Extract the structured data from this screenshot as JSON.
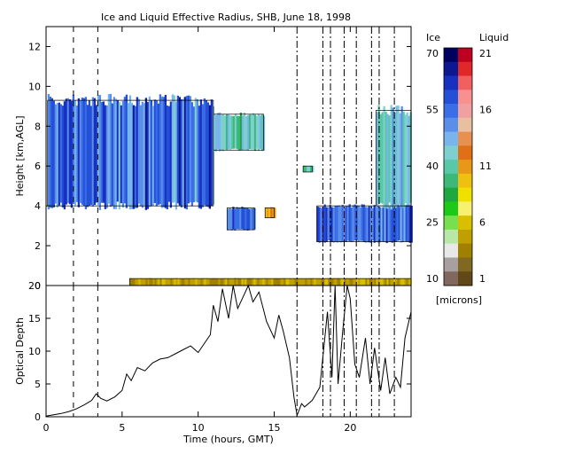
{
  "chart_data": [
    {
      "type": "heatmap",
      "title": "Ice and Liquid Effective Radius, SHB, June 18, 1998",
      "ylabel": "Height [km,AGL]",
      "xlim": [
        0,
        24
      ],
      "ylim": [
        0,
        13
      ],
      "yticks": [
        0,
        2,
        4,
        6,
        8,
        10,
        12
      ],
      "cloud_regions": [
        {
          "label": "upper ice layer",
          "x_start": 0.1,
          "x_end": 11.0,
          "y_bottom": 4.0,
          "y_top": 9.3,
          "phase": "ice",
          "value_range": [
            45,
            65
          ]
        },
        {
          "label": "ice top fringe",
          "x_start": 11.0,
          "x_end": 14.3,
          "y_bottom": 6.8,
          "y_top": 8.6,
          "phase": "ice",
          "value_range": [
            34,
            50
          ]
        },
        {
          "label": "mid ice patch",
          "x_start": 11.9,
          "x_end": 13.7,
          "y_bottom": 2.8,
          "y_top": 3.9,
          "phase": "ice",
          "value_range": [
            50,
            62
          ]
        },
        {
          "label": "liquid patch",
          "x_start": 14.4,
          "x_end": 15.0,
          "y_bottom": 3.4,
          "y_top": 3.9,
          "phase": "liquid",
          "value_range": [
            10,
            12
          ]
        },
        {
          "label": "small ice cell",
          "x_start": 16.9,
          "x_end": 17.5,
          "y_bottom": 5.7,
          "y_top": 6.0,
          "phase": "ice",
          "value_range": [
            35,
            45
          ]
        },
        {
          "label": "late ice layer",
          "x_start": 17.8,
          "x_end": 24.0,
          "y_bottom": 2.2,
          "y_top": 4.0,
          "phase": "ice",
          "value_range": [
            48,
            64
          ]
        },
        {
          "label": "late upper ice",
          "x_start": 21.7,
          "x_end": 24.0,
          "y_bottom": 4.0,
          "y_top": 8.8,
          "phase": "ice",
          "value_range": [
            38,
            52
          ]
        },
        {
          "label": "surface liquid layer",
          "x_start": 5.5,
          "x_end": 24.0,
          "y_bottom": 0.0,
          "y_top": 0.35,
          "phase": "liquid",
          "value_range": [
            3,
            6
          ]
        }
      ],
      "vertical_lines": [
        {
          "x": 1.8,
          "style": "dashed"
        },
        {
          "x": 3.4,
          "style": "dashed"
        },
        {
          "x": 16.5,
          "style": "dash-dot"
        },
        {
          "x": 18.2,
          "style": "dash-dot"
        },
        {
          "x": 18.7,
          "style": "dash-dot"
        },
        {
          "x": 19.6,
          "style": "dash-dot"
        },
        {
          "x": 20.4,
          "style": "dash-dot"
        },
        {
          "x": 21.4,
          "style": "dash-dot"
        },
        {
          "x": 21.9,
          "style": "dash-dot"
        },
        {
          "x": 22.9,
          "style": "dash-dot"
        }
      ],
      "colorbar": {
        "ice_label": "Ice",
        "liquid_label": "Liquid",
        "unit": "[microns]",
        "ice_ticks": [
          70,
          55,
          40,
          25,
          10
        ],
        "liquid_ticks": [
          21,
          16,
          11,
          6,
          1
        ],
        "colors": [
          "#000060",
          "#0c1790",
          "#1830c0",
          "#2450d8",
          "#3a6ee6",
          "#5a8ee8",
          "#7ab4ec",
          "#7ed0d0",
          "#58c8a8",
          "#3cb878",
          "#20a840",
          "#1cc818",
          "#78e050",
          "#b8e8a8",
          "#e8e8e8",
          "#a8a0a0",
          "#806860"
        ],
        "liquid_colors": [
          "#c00020",
          "#e02828",
          "#f06060",
          "#f89090",
          "#f0a0a0",
          "#e8c0a0",
          "#e89050",
          "#e07018",
          "#e89818",
          "#f0c010",
          "#f0e000",
          "#f8f070",
          "#d8c000",
          "#c0a000",
          "#a08000",
          "#806820",
          "#604818"
        ]
      }
    },
    {
      "type": "line",
      "ylabel": "Optical Depth",
      "xlabel": "Time (hours, GMT)",
      "xlim": [
        0,
        24
      ],
      "ylim": [
        0,
        20
      ],
      "xticks": [
        0,
        5,
        10,
        15,
        20
      ],
      "yticks": [
        0,
        5,
        10,
        15,
        20
      ],
      "series": [
        {
          "x": [
            0,
            0.5,
            1,
            1.5,
            2,
            2.5,
            3,
            3.3,
            3.6,
            4,
            4.5,
            5,
            5.3,
            5.6,
            6,
            6.5,
            7,
            7.5,
            8,
            8.5,
            9,
            9.5,
            10,
            10.5,
            10.8,
            11,
            11.3,
            11.6,
            12,
            12.3,
            12.6,
            13,
            13.3,
            13.6,
            14,
            14.5,
            15,
            15.3,
            15.6,
            16,
            16.3,
            16.5,
            16.8,
            17,
            17.5,
            18,
            18.2,
            18.5,
            18.8,
            19,
            19.2,
            19.5,
            19.8,
            20,
            20.3,
            20.6,
            21,
            21.3,
            21.6,
            22,
            22.3,
            22.6,
            23,
            23.3,
            23.6,
            24
          ],
          "values": [
            0.1,
            0.3,
            0.5,
            0.8,
            1.2,
            1.8,
            2.5,
            3.5,
            2.8,
            2.4,
            3.0,
            4.0,
            6.5,
            5.5,
            7.5,
            7.0,
            8.2,
            8.8,
            9.0,
            9.6,
            10.2,
            10.8,
            9.8,
            11.5,
            12.5,
            17.0,
            14.5,
            19.5,
            15.0,
            20.0,
            16.5,
            18.5,
            20.0,
            17.5,
            19.0,
            14.5,
            12.0,
            15.5,
            13.0,
            9.0,
            3.0,
            0.2,
            2.0,
            1.5,
            2.5,
            4.5,
            9.0,
            16.0,
            6.0,
            20.0,
            5.0,
            13.0,
            20.0,
            18.0,
            8.0,
            6.0,
            12.0,
            5.0,
            10.5,
            4.0,
            9.0,
            3.5,
            6.0,
            4.5,
            12.0,
            16.0
          ]
        }
      ],
      "vertical_lines": [
        {
          "x": 1.8,
          "style": "dashed"
        },
        {
          "x": 3.4,
          "style": "dashed"
        },
        {
          "x": 16.5,
          "style": "dash-dot"
        },
        {
          "x": 18.2,
          "style": "dash-dot"
        },
        {
          "x": 18.7,
          "style": "dash-dot"
        },
        {
          "x": 19.6,
          "style": "dash-dot"
        },
        {
          "x": 20.4,
          "style": "dash-dot"
        },
        {
          "x": 21.4,
          "style": "dash-dot"
        },
        {
          "x": 21.9,
          "style": "dash-dot"
        },
        {
          "x": 22.9,
          "style": "dash-dot"
        }
      ]
    }
  ]
}
